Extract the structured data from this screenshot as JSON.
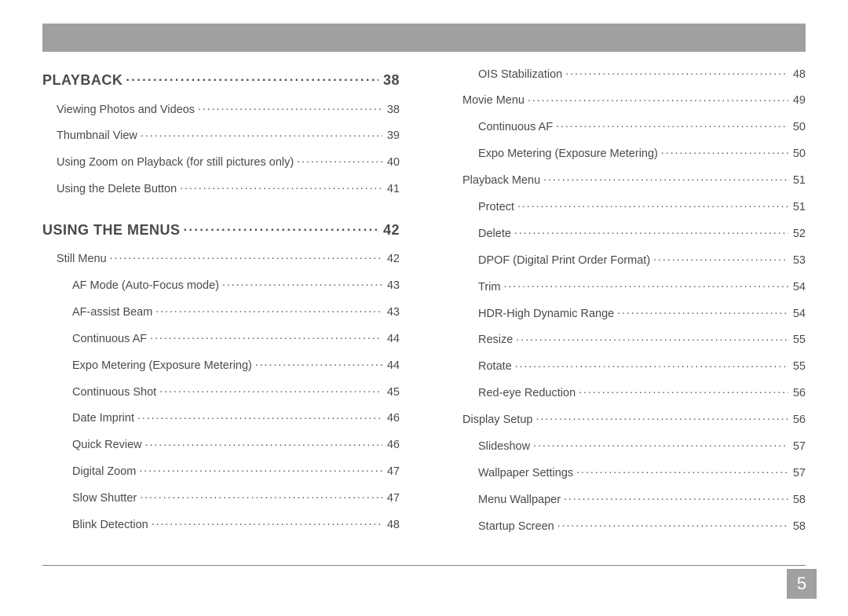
{
  "page_number": "5",
  "colors": {
    "bar": "#a0a0a0",
    "text": "#4a4a4a",
    "rule": "#808080",
    "page_num_text": "#ffffff",
    "background": "#ffffff"
  },
  "left_column": [
    {
      "kind": "section",
      "label": "PLAYBACK",
      "page": "38"
    },
    {
      "kind": "entry",
      "level": 0,
      "label": "Viewing Photos and Videos",
      "page": "38"
    },
    {
      "kind": "entry",
      "level": 0,
      "label": "Thumbnail View",
      "page": "39"
    },
    {
      "kind": "entry",
      "level": 0,
      "label": "Using Zoom on Playback (for still pictures only)",
      "page": "40"
    },
    {
      "kind": "entry",
      "level": 0,
      "label": "Using the Delete Button",
      "page": "41"
    },
    {
      "kind": "spacer"
    },
    {
      "kind": "section",
      "label": "USING THE MENUS",
      "page": "42"
    },
    {
      "kind": "entry",
      "level": 0,
      "label": "Still Menu",
      "page": "42"
    },
    {
      "kind": "entry",
      "level": 1,
      "label": "AF Mode (Auto-Focus mode)",
      "page": "43"
    },
    {
      "kind": "entry",
      "level": 1,
      "label": "AF-assist Beam",
      "page": "43"
    },
    {
      "kind": "entry",
      "level": 1,
      "label": "Continuous AF",
      "page": "44"
    },
    {
      "kind": "entry",
      "level": 1,
      "label": "Expo Metering (Exposure Metering)",
      "page": "44"
    },
    {
      "kind": "entry",
      "level": 1,
      "label": "Continuous Shot",
      "page": "45"
    },
    {
      "kind": "entry",
      "level": 1,
      "label": "Date Imprint",
      "page": "46"
    },
    {
      "kind": "entry",
      "level": 1,
      "label": "Quick Review",
      "page": "46"
    },
    {
      "kind": "entry",
      "level": 1,
      "label": "Digital Zoom",
      "page": "47"
    },
    {
      "kind": "entry",
      "level": 1,
      "label": "Slow Shutter",
      "page": "47"
    },
    {
      "kind": "entry",
      "level": 1,
      "label": "Blink Detection",
      "page": "48"
    }
  ],
  "right_column": [
    {
      "kind": "entry",
      "level": 1,
      "label": "OIS Stabilization",
      "page": "48"
    },
    {
      "kind": "entry",
      "level": 0,
      "label": "Movie Menu",
      "page": "49"
    },
    {
      "kind": "entry",
      "level": 1,
      "label": "Continuous AF",
      "page": "50"
    },
    {
      "kind": "entry",
      "level": 1,
      "label": "Expo Metering (Exposure Metering)",
      "page": "50"
    },
    {
      "kind": "entry",
      "level": 0,
      "label": "Playback Menu",
      "page": "51"
    },
    {
      "kind": "entry",
      "level": 1,
      "label": "Protect",
      "page": "51"
    },
    {
      "kind": "entry",
      "level": 1,
      "label": "Delete",
      "page": "52"
    },
    {
      "kind": "entry",
      "level": 1,
      "label": "DPOF (Digital Print Order Format)",
      "page": "53"
    },
    {
      "kind": "entry",
      "level": 1,
      "label": "Trim",
      "page": "54"
    },
    {
      "kind": "entry",
      "level": 1,
      "label": "HDR-High Dynamic Range",
      "page": "54"
    },
    {
      "kind": "entry",
      "level": 1,
      "label": "Resize",
      "page": "55"
    },
    {
      "kind": "entry",
      "level": 1,
      "label": "Rotate",
      "page": "55"
    },
    {
      "kind": "entry",
      "level": 1,
      "label": "Red-eye Reduction",
      "page": "56"
    },
    {
      "kind": "entry",
      "level": 0,
      "label": "Display Setup",
      "page": "56"
    },
    {
      "kind": "entry",
      "level": 1,
      "label": "Slideshow",
      "page": "57"
    },
    {
      "kind": "entry",
      "level": 1,
      "label": "Wallpaper Settings",
      "page": "57"
    },
    {
      "kind": "entry",
      "level": 1,
      "label": "Menu Wallpaper",
      "page": "58"
    },
    {
      "kind": "entry",
      "level": 1,
      "label": "Startup Screen",
      "page": "58"
    }
  ]
}
